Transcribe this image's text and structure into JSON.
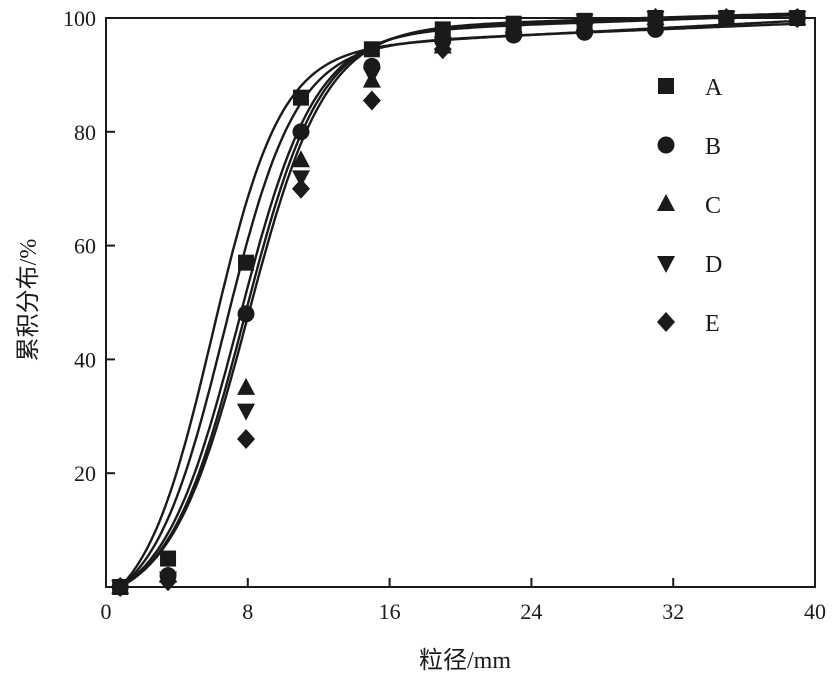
{
  "chart_data": {
    "type": "scatter",
    "title": "",
    "xlabel": "粒径/mm",
    "ylabel": "累积分布/%",
    "xlim": [
      0,
      40
    ],
    "ylim": [
      0,
      100
    ],
    "xticks": [
      0,
      8,
      16,
      24,
      32,
      40
    ],
    "yticks": [
      20,
      40,
      60,
      80,
      100
    ],
    "grid": false,
    "legend_position": "right",
    "fit_curves": true,
    "series": [
      {
        "name": "A",
        "marker": "square",
        "x": [
          0.8,
          3.5,
          7.9,
          11,
          15,
          19,
          23,
          27,
          31,
          35,
          39
        ],
        "y": [
          0,
          5,
          57,
          86,
          94.5,
          98,
          99,
          99.5,
          100,
          100,
          100
        ],
        "fit": {
          "x0": 6.0,
          "k": 0.52,
          "top": 99.5
        }
      },
      {
        "name": "B",
        "marker": "circle",
        "x": [
          0.8,
          3.5,
          7.9,
          11,
          15,
          19,
          23,
          27,
          31,
          35,
          39
        ],
        "y": [
          0,
          2,
          48,
          80,
          91.5,
          96,
          97,
          97.5,
          98,
          100,
          100
        ],
        "fit": {
          "x0": 6.7,
          "k": 0.5,
          "top": 99.0
        }
      },
      {
        "name": "C",
        "marker": "triangle-up",
        "x": [
          0.8,
          3.5,
          7.9,
          11,
          15,
          19,
          23,
          27,
          31,
          35,
          39
        ],
        "y": [
          0,
          2,
          35,
          75,
          89,
          95,
          98,
          99,
          100,
          100,
          100
        ],
        "fit": {
          "x0": 7.5,
          "k": 0.47,
          "top": 100.5
        }
      },
      {
        "name": "D",
        "marker": "triangle-down",
        "x": [
          0.8,
          3.5,
          7.9,
          11,
          15,
          19,
          23,
          27,
          31,
          35,
          39
        ],
        "y": [
          0,
          1.5,
          31,
          72,
          90,
          95.5,
          98,
          99.5,
          100,
          100,
          100
        ],
        "fit": {
          "x0": 7.8,
          "k": 0.47,
          "top": 100.5
        }
      },
      {
        "name": "E",
        "marker": "diamond",
        "x": [
          0.8,
          3.5,
          7.9,
          11,
          15,
          19,
          23,
          27,
          31,
          35,
          39
        ],
        "y": [
          0,
          1,
          26,
          70,
          85.5,
          94.5,
          97.5,
          99,
          100,
          100,
          100
        ],
        "fit": {
          "x0": 8.0,
          "k": 0.46,
          "top": 100.8
        }
      }
    ]
  }
}
